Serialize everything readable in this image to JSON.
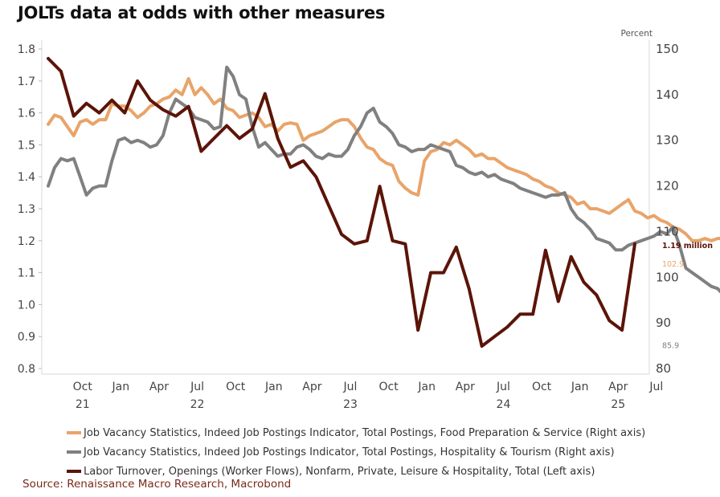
{
  "chart_data": {
    "type": "line",
    "title": "JOLTs data at odds with other measures",
    "left_axis": {
      "label": "",
      "ylim": [
        0.8,
        1.8
      ],
      "ticks": [
        "1.8",
        "1.7",
        "1.6",
        "1.5",
        "1.4",
        "1.3",
        "1.2",
        "1.1",
        "1.0",
        "0.9",
        "0.8"
      ]
    },
    "right_axis": {
      "label": "Percent",
      "ylim": [
        80,
        150
      ],
      "ticks": [
        "150",
        "140",
        "130",
        "120",
        "110",
        "100",
        "90",
        "80"
      ]
    },
    "x_axis": {
      "range": [
        "2021-08",
        "2025-07"
      ],
      "ticks": [
        {
          "month": "Oct",
          "year": "21"
        },
        {
          "month": "Jan",
          "year": ""
        },
        {
          "month": "Apr",
          "year": ""
        },
        {
          "month": "Jul",
          "year": "22"
        },
        {
          "month": "Oct",
          "year": ""
        },
        {
          "month": "Jan",
          "year": ""
        },
        {
          "month": "Apr",
          "year": ""
        },
        {
          "month": "Jul",
          "year": "23"
        },
        {
          "month": "Oct",
          "year": ""
        },
        {
          "month": "Jan",
          "year": ""
        },
        {
          "month": "Apr",
          "year": ""
        },
        {
          "month": "Jul",
          "year": "24"
        },
        {
          "month": "Oct",
          "year": ""
        },
        {
          "month": "Jan",
          "year": ""
        },
        {
          "month": "Apr",
          "year": "25"
        },
        {
          "month": "Jul",
          "year": ""
        }
      ]
    },
    "grid": false,
    "legend_position": "bottom",
    "series": [
      {
        "name": "Job Vacancy Statistics, Indeed Job Postings Indicator, Total Postings, Food Preparation & Service (Right axis)",
        "axis": "right",
        "color": "#e8a46a",
        "start": "2021-08",
        "step_months": 0.5,
        "values": [
          133.5,
          135.5,
          135,
          133,
          131,
          134,
          134.5,
          133.5,
          134.5,
          134.5,
          138,
          137.5,
          137.5,
          136.5,
          135,
          136,
          137.5,
          138,
          139,
          139.5,
          141,
          140,
          143.5,
          140,
          141.5,
          140,
          138,
          139,
          137,
          136.5,
          135,
          135.5,
          136,
          135,
          133,
          133.5,
          132,
          133.5,
          133.8,
          133.5,
          130,
          131,
          131.5,
          132,
          133,
          134,
          134.5,
          134.5,
          133,
          130.5,
          128.5,
          128,
          126,
          125,
          124.5,
          121,
          119.5,
          118.5,
          118,
          125.5,
          127.5,
          128,
          129.5,
          129,
          130,
          129,
          128,
          126.5,
          127,
          126,
          126,
          125,
          124,
          123.5,
          123,
          122.5,
          121.5,
          121,
          120,
          119.5,
          118.5,
          118,
          117.5,
          116,
          116.5,
          115,
          115,
          114.5,
          114,
          115,
          116,
          117,
          114.5,
          114,
          113,
          113.5,
          112.5,
          112,
          111,
          110.5,
          109.5,
          108,
          108,
          108.5,
          108,
          108.5,
          108.5,
          109,
          108.5,
          108,
          107.5,
          107,
          106.5,
          107,
          107,
          107.5,
          106.5,
          106,
          106.3,
          106,
          105,
          104.5,
          104,
          104.5,
          104,
          103.5,
          103.5,
          104,
          104.5,
          101.5,
          102.9
        ]
      },
      {
        "name": "Job Vacancy Statistics, Indeed Job Postings Indicator, Total Postings, Hospitality & Tourism (Right axis)",
        "axis": "right",
        "color": "#808080",
        "start": "2021-08",
        "step_months": 0.5,
        "values": [
          120,
          124,
          126,
          125.5,
          126,
          122,
          118,
          119.5,
          120,
          120,
          125.5,
          130,
          130.5,
          129.5,
          130,
          129.5,
          128.5,
          129,
          131,
          136,
          139,
          138,
          137,
          135,
          134.5,
          134,
          132.5,
          133,
          146,
          144,
          140,
          139,
          133,
          128.5,
          129.5,
          128,
          126.5,
          127,
          127,
          128.5,
          129,
          128,
          126.5,
          126,
          127,
          126.5,
          126.5,
          128,
          131,
          133,
          136,
          137,
          134,
          133,
          131.5,
          129,
          128.5,
          127.5,
          128,
          128,
          129,
          128.5,
          128,
          127.5,
          124.5,
          124,
          123,
          122.5,
          123,
          122,
          122.5,
          121.5,
          121,
          120.5,
          119.5,
          119,
          118.5,
          118,
          117.5,
          118,
          118,
          118.5,
          115,
          113,
          112,
          110.5,
          108.5,
          108,
          107.5,
          106,
          106,
          107,
          107.5,
          108,
          108.5,
          109,
          110,
          109.5,
          111,
          107,
          102,
          101,
          100,
          99,
          98,
          97.5,
          96,
          95,
          94.5,
          94,
          94.5,
          95,
          95.5,
          95,
          94.5,
          95,
          95.5,
          96,
          96.5,
          96,
          95,
          94.5,
          94,
          93,
          94,
          95,
          96,
          96.5,
          97,
          96,
          95.5,
          94,
          91,
          90,
          88.5,
          87,
          86,
          85.5,
          85.9
        ]
      },
      {
        "name": "Labor Turnover, Openings (Worker Flows), Nonfarm, Private, Leisure & Hospitality, Total (Left axis)",
        "axis": "left",
        "color": "#5c1408",
        "start": "2021-08",
        "step_months": 1,
        "values": [
          1.77,
          1.73,
          1.59,
          1.63,
          1.6,
          1.64,
          1.6,
          1.7,
          1.64,
          1.61,
          1.59,
          1.62,
          1.48,
          1.52,
          1.56,
          1.52,
          1.55,
          1.66,
          1.52,
          1.43,
          1.45,
          1.4,
          1.31,
          1.22,
          1.19,
          1.2,
          1.37,
          1.2,
          1.19,
          0.92,
          1.1,
          1.1,
          1.18,
          1.05,
          0.87,
          0.9,
          0.93,
          0.97,
          0.97,
          1.17,
          1.01,
          1.15,
          1.07,
          1.03,
          0.95,
          0.92,
          1.19
        ]
      }
    ],
    "annotations": [
      {
        "series": 2,
        "text": "1.19 million"
      },
      {
        "series": 0,
        "text": "102.9"
      },
      {
        "series": 1,
        "text": "85.9"
      }
    ],
    "source": "Source: Renaissance Macro Research, Macrobond"
  }
}
